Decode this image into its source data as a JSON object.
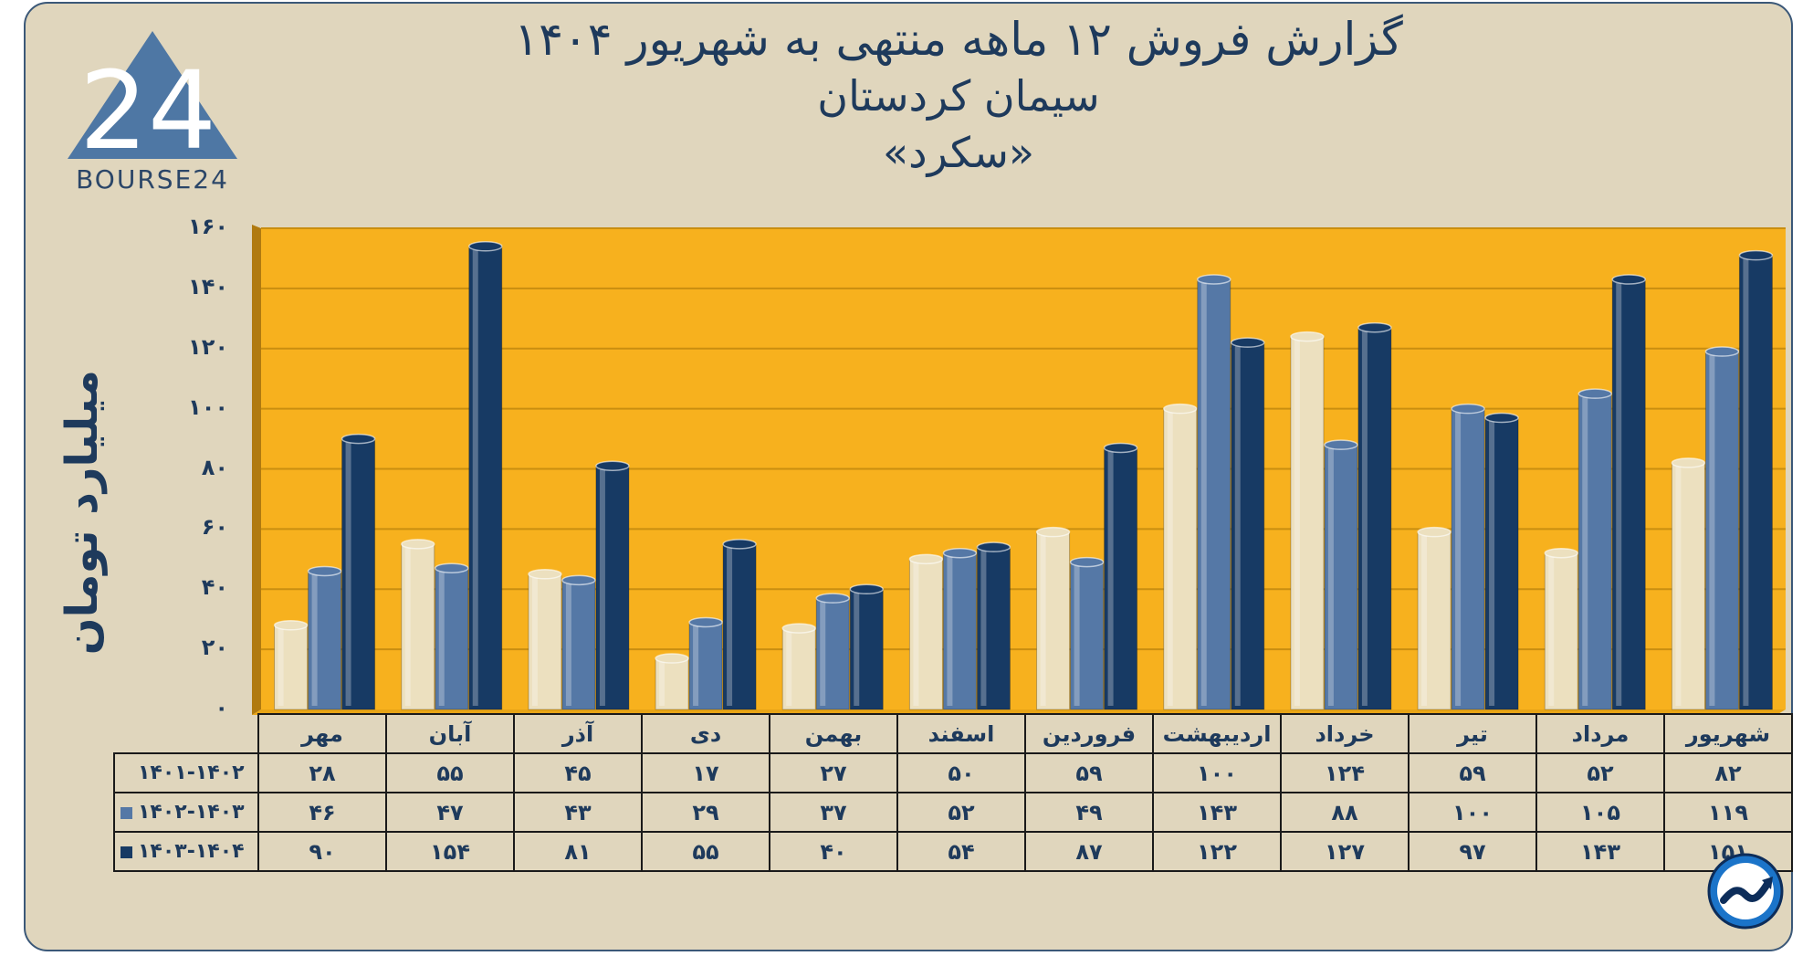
{
  "title": {
    "line1": "گزارش  فروش ۱۲ ماهه منتهی به شهریور ۱۴۰۴",
    "line2": "سیمان کردستان",
    "line3": "«سکرد»"
  },
  "logo": {
    "text": "BOURSE24",
    "mark": "24"
  },
  "colors": {
    "plot_bg": "#f7b11e",
    "frame_bg": "#e0d6bd",
    "series_1": "#ece0bf",
    "series_2": "#5578a6",
    "series_3": "#173a64",
    "text": "#1e3a5c"
  },
  "chart_data": {
    "type": "bar",
    "title": "گزارش  فروش ۱۲ ماهه منتهی به شهریور ۱۴۰۴ - سیمان کردستان «سکرد»",
    "ylabel": "میلیارد تومان",
    "xlabel": "",
    "ylim": [
      0,
      160
    ],
    "yticks": [
      "۰",
      "۲۰",
      "۴۰",
      "۶۰",
      "۸۰",
      "۱۰۰",
      "۱۲۰",
      "۱۴۰",
      "۱۶۰"
    ],
    "ytick_values": [
      0,
      20,
      40,
      60,
      80,
      100,
      120,
      140,
      160
    ],
    "grid": true,
    "categories": [
      "مهر",
      "آبان",
      "آذر",
      "دی",
      "بهمن",
      "اسفند",
      "فروردین",
      "اردیبهشت",
      "خرداد",
      "تیر",
      "مرداد",
      "شهریور"
    ],
    "series": [
      {
        "name": "۱۴۰۱-۱۴۰۲",
        "values": [
          28,
          55,
          45,
          17,
          27,
          50,
          59,
          100,
          124,
          59,
          52,
          82
        ],
        "labels": [
          "۲۸",
          "۵۵",
          "۴۵",
          "۱۷",
          "۲۷",
          "۵۰",
          "۵۹",
          "۱۰۰",
          "۱۲۴",
          "۵۹",
          "۵۲",
          "۸۲"
        ]
      },
      {
        "name": "۱۴۰۲-۱۴۰۳",
        "values": [
          46,
          47,
          43,
          29,
          37,
          52,
          49,
          143,
          88,
          100,
          105,
          119
        ],
        "labels": [
          "۴۶",
          "۴۷",
          "۴۳",
          "۲۹",
          "۳۷",
          "۵۲",
          "۴۹",
          "۱۴۳",
          "۸۸",
          "۱۰۰",
          "۱۰۵",
          "۱۱۹"
        ]
      },
      {
        "name": "۱۴۰۳-۱۴۰۴",
        "values": [
          90,
          154,
          81,
          55,
          40,
          54,
          87,
          122,
          127,
          97,
          143,
          151
        ],
        "labels": [
          "۹۰",
          "۱۵۴",
          "۸۱",
          "۵۵",
          "۴۰",
          "۵۴",
          "۸۷",
          "۱۲۲",
          "۱۲۷",
          "۹۷",
          "۱۴۳",
          "۱۵۱"
        ]
      }
    ]
  }
}
